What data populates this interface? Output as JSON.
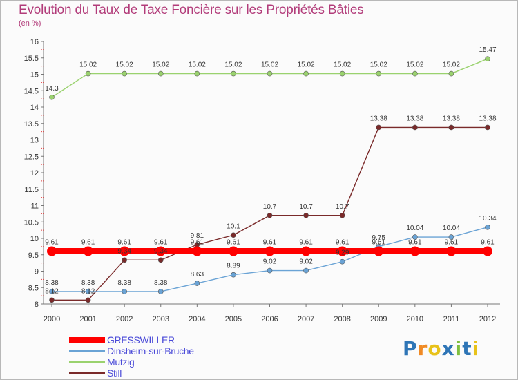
{
  "chart_data": {
    "type": "line",
    "title": "Evolution du Taux de Taxe Foncière sur les Propriétés Bâties",
    "unit_label": "(en %)",
    "xlabel": "",
    "ylabel": "",
    "categories": [
      "2000",
      "2001",
      "2002",
      "2003",
      "2004",
      "2005",
      "2006",
      "2007",
      "2008",
      "2009",
      "2010",
      "2011",
      "2012"
    ],
    "ylim": [
      8,
      16
    ],
    "yticks": [
      "8",
      "8.5",
      "9",
      "9.5",
      "10",
      "10.5",
      "11",
      "11.5",
      "12",
      "12.5",
      "13",
      "13.5",
      "14",
      "14.5",
      "15",
      "15.5",
      "16"
    ],
    "grid": false,
    "legend_position": "bottom-left",
    "series": [
      {
        "name": "GRESSWILLER",
        "color": "#ff0000",
        "values": [
          9.61,
          9.61,
          9.61,
          9.61,
          9.61,
          9.61,
          9.61,
          9.61,
          9.61,
          9.61,
          9.61,
          9.61,
          9.61
        ],
        "labels": [
          "9.61",
          "9.61",
          "9.61",
          "9.61",
          "9.61",
          "9.61",
          "9.61",
          "9.61",
          "9.61",
          "9.61",
          "9.61",
          "9.61",
          "9.61"
        ]
      },
      {
        "name": "Dinsheim-sur-Bruche",
        "color": "#6aa3d5",
        "values": [
          8.38,
          8.38,
          8.38,
          8.38,
          8.63,
          8.89,
          9.02,
          9.02,
          9.29,
          9.75,
          10.04,
          10.04,
          10.34
        ],
        "labels": [
          "8.38",
          "8.38",
          "8.38",
          "8.38",
          "8.63",
          "8.89",
          "9.02",
          "9.02",
          "9.29",
          "9.75",
          "10.04",
          "10.04",
          "10.34"
        ]
      },
      {
        "name": "Mutzig",
        "color": "#9ad26e",
        "values": [
          14.3,
          15.02,
          15.02,
          15.02,
          15.02,
          15.02,
          15.02,
          15.02,
          15.02,
          15.02,
          15.02,
          15.02,
          15.47
        ],
        "labels": [
          "14.3",
          "15.02",
          "15.02",
          "15.02",
          "15.02",
          "15.02",
          "15.02",
          "15.02",
          "15.02",
          "15.02",
          "15.02",
          "15.02",
          "15.47"
        ]
      },
      {
        "name": "Still",
        "color": "#7a2a2a",
        "values": [
          8.12,
          8.12,
          9.34,
          9.34,
          9.81,
          10.1,
          10.7,
          10.7,
          10.7,
          13.38,
          13.38,
          13.38,
          13.38
        ],
        "labels": [
          "8.12",
          "8.12",
          "9.34",
          "9.34",
          "9.81",
          "10.1",
          "10.7",
          "10.7",
          "10.7",
          "13.38",
          "13.38",
          "13.38",
          "13.38"
        ]
      }
    ]
  },
  "brand": {
    "letters": [
      "P",
      "r",
      "o",
      "x",
      "i",
      "t",
      "i"
    ],
    "colors": [
      "#2e75b6",
      "#f08a24",
      "#e8c21a",
      "#2e75b6",
      "#7fbf3f",
      "#2e75b6",
      "#e8c21a"
    ]
  }
}
